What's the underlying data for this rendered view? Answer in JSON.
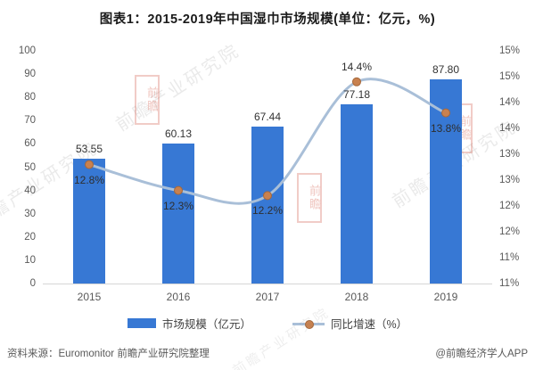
{
  "title": "图表1：2015-2019年中国湿巾市场规模(单位：亿元，%)",
  "chart_data": {
    "type": "bar",
    "subtype": "combo-bar-line",
    "title": "图表1：2015-2019年中国湿巾市场规模(单位：亿元，%)",
    "categories": [
      "2015",
      "2016",
      "2017",
      "2018",
      "2019"
    ],
    "series": [
      {
        "name": "市场规模（亿元）",
        "type": "bar",
        "axis": "left",
        "values": [
          53.55,
          60.13,
          67.44,
          77.18,
          87.8
        ],
        "labels": [
          "53.55",
          "60.13",
          "67.44",
          "77.18",
          "87.80"
        ],
        "color": "#3778d4"
      },
      {
        "name": "同比增速（%）",
        "type": "line",
        "axis": "right",
        "values": [
          12.8,
          12.3,
          12.2,
          14.4,
          13.8
        ],
        "labels": [
          "12.8%",
          "12.3%",
          "12.2%",
          "14.4%",
          "13.8%"
        ],
        "label_positions": [
          "below",
          "below",
          "below",
          "above",
          "below"
        ],
        "line_color": "#a9bfd8",
        "marker_color": "#c8814f",
        "marker_edge_color": "#a5683b",
        "smooth": true
      }
    ],
    "left_axis": {
      "min": 0,
      "max": 100,
      "step": 10,
      "tick_labels_top_to_bottom": [
        "100",
        "90",
        "80",
        "70",
        "60",
        "50",
        "40",
        "30",
        "20",
        "10",
        "0"
      ]
    },
    "right_axis": {
      "min": 10.5,
      "max": 15,
      "step": 0.5,
      "tick_labels_top_to_bottom": [
        "15%",
        "15%",
        "14%",
        "14%",
        "13%",
        "13%",
        "12%",
        "12%",
        "11%",
        "11%"
      ]
    },
    "grid": false,
    "legend_position": "bottom"
  },
  "legend": {
    "items": [
      {
        "label": "市场规模（亿元）",
        "swatch": "bar",
        "color": "#3778d4"
      },
      {
        "label": "同比增速（%）",
        "swatch": "line",
        "line_color": "#a9bfd8",
        "marker_color": "#c8814f"
      }
    ]
  },
  "footer": {
    "source": "资料来源：Euromonitor 前瞻产业研究院整理",
    "credit": "@前瞻经济学人APP"
  },
  "watermarks": {
    "diagonal_text": "前瞻产业研究院",
    "stamp_text": "前瞻"
  },
  "colors": {
    "bar": "#3778d4",
    "line": "#a9bfd8",
    "marker": "#c8814f",
    "axis_text": "#595959",
    "baseline": "#d6d6d6",
    "title_text": "#1a1a1a"
  }
}
